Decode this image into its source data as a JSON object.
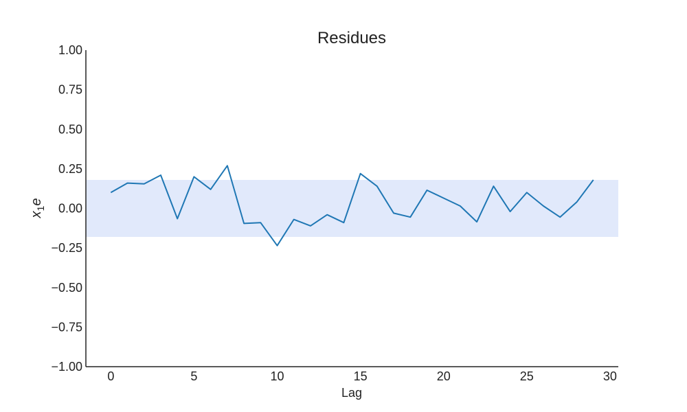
{
  "chart_data": {
    "type": "line",
    "title": "Residues",
    "xlabel": "Lag",
    "ylabel": {
      "main": "e",
      "subscript": "1",
      "base": "x"
    },
    "xlim": [
      -1.5,
      30.5
    ],
    "ylim": [
      -1.0,
      1.0
    ],
    "xticks": [
      0,
      5,
      10,
      15,
      20,
      25,
      30
    ],
    "yticks": [
      1.0,
      0.75,
      0.5,
      0.25,
      0.0,
      -0.25,
      -0.5,
      -0.75,
      -1.0
    ],
    "ytick_labels": [
      "1.00",
      "0.75",
      "0.50",
      "0.25",
      "0.00",
      "−0.25",
      "−0.50",
      "−0.75",
      "−1.00"
    ],
    "confidence_band": {
      "lower": -0.18,
      "upper": 0.18,
      "color": "#e1e9fb"
    },
    "series": [
      {
        "color": "#1f77b4",
        "x": [
          0,
          1,
          2,
          3,
          4,
          5,
          6,
          7,
          8,
          9,
          10,
          11,
          12,
          13,
          14,
          15,
          16,
          17,
          18,
          19,
          20,
          21,
          22,
          23,
          24,
          25,
          26,
          27,
          28,
          29
        ],
        "values": [
          0.1,
          0.16,
          0.155,
          0.21,
          -0.065,
          0.2,
          0.12,
          0.27,
          -0.095,
          -0.09,
          -0.235,
          -0.07,
          -0.11,
          -0.04,
          -0.09,
          0.22,
          0.14,
          -0.03,
          -0.055,
          0.115,
          0.065,
          0.015,
          -0.085,
          0.14,
          -0.02,
          0.1,
          0.015,
          -0.055,
          0.04,
          0.18
        ]
      }
    ],
    "grid": false,
    "legend": "none",
    "spines": "left-bottom"
  }
}
